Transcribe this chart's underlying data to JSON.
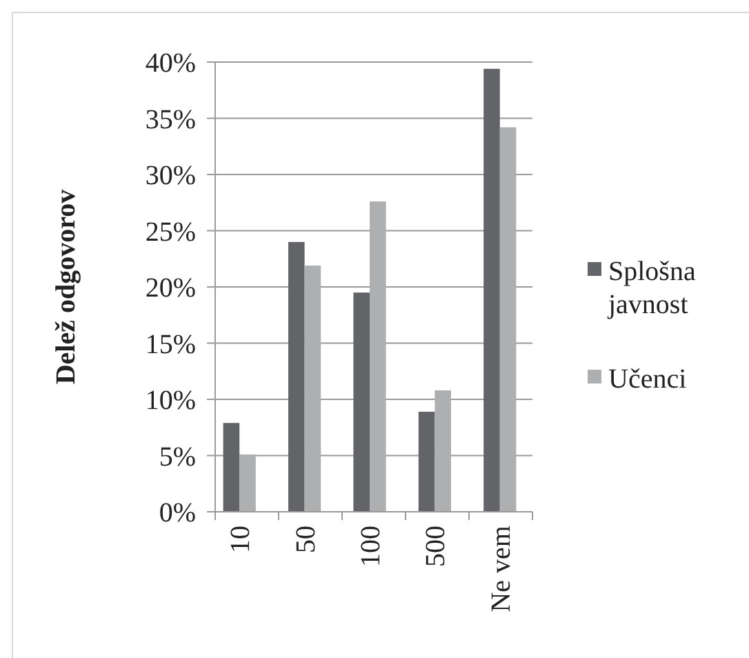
{
  "chart_data": {
    "type": "bar",
    "ylabel": "Delež odgovorov",
    "categories": [
      "10",
      "50",
      "100",
      "500",
      "Ne vem"
    ],
    "series": [
      {
        "name": "Splošna javnost",
        "color": "#636467",
        "values": [
          7.9,
          24.0,
          19.5,
          8.9,
          39.4
        ]
      },
      {
        "name": "Učenci",
        "color": "#aeafb1",
        "values": [
          5.1,
          21.9,
          27.6,
          10.8,
          34.2
        ]
      }
    ],
    "ylim": [
      0,
      40
    ],
    "yticks": [
      {
        "value": 0,
        "label": "0%"
      },
      {
        "value": 5,
        "label": "5%"
      },
      {
        "value": 10,
        "label": "10%"
      },
      {
        "value": 15,
        "label": "15%"
      },
      {
        "value": 20,
        "label": "20%"
      },
      {
        "value": 25,
        "label": "25%"
      },
      {
        "value": 30,
        "label": "30%"
      },
      {
        "value": 35,
        "label": "35%"
      },
      {
        "value": 40,
        "label": "40%"
      }
    ],
    "grid": "y",
    "legend": "right"
  }
}
